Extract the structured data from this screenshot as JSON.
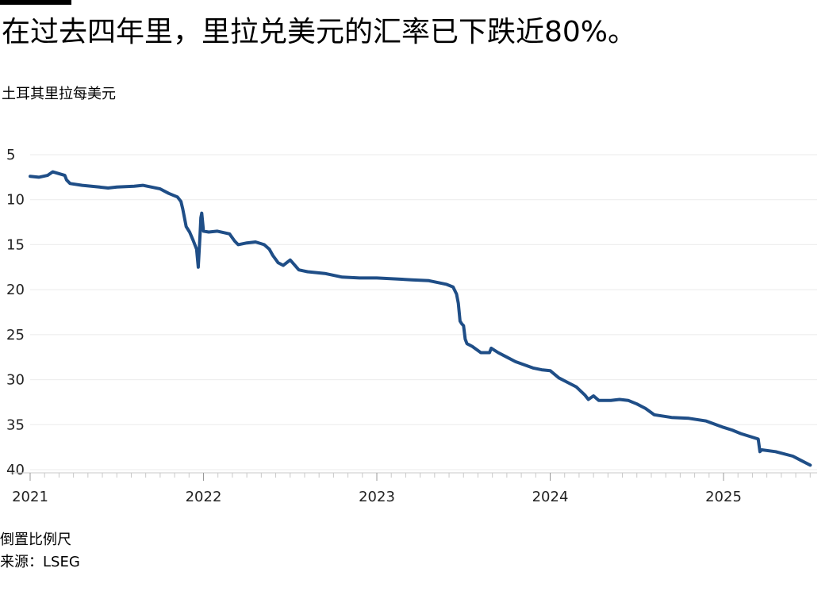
{
  "title": "在过去四年里，里拉兑美元的汇率已下跌近80%。",
  "unit_label": "土耳其里拉每美元",
  "note": "倒置比例尺",
  "source": "来源：LSEG",
  "colors": {
    "line": "#1f4e87",
    "grid": "#ebebeb",
    "axis": "#c8c8c8"
  },
  "chart_data": {
    "type": "line",
    "title": "在过去四年里，里拉兑美元的汇率已下跌近80%。",
    "xlabel": "",
    "ylabel": "土耳其里拉每美元",
    "y_inverted": true,
    "ylim": [
      5,
      40
    ],
    "yticks": [
      5,
      10,
      15,
      20,
      25,
      30,
      35,
      40
    ],
    "xticks": [
      2021,
      2022,
      2023,
      2024,
      2025
    ],
    "xlim": [
      2021.0,
      2025.54
    ],
    "grid": "horizontal",
    "legend": "none",
    "series": [
      {
        "x": [
          2021.0,
          2021.05,
          2021.1,
          2021.13,
          2021.2,
          2021.21,
          2021.23,
          2021.3,
          2021.4,
          2021.45,
          2021.5,
          2021.6,
          2021.65,
          2021.7,
          2021.75,
          2021.8,
          2021.85,
          2021.87,
          2021.88,
          2021.89,
          2021.9,
          2021.92,
          2021.94,
          2021.96,
          2021.97,
          2021.98,
          2021.985,
          2021.99,
          2021.995,
          2022.0,
          2022.03,
          2022.08,
          2022.15,
          2022.18,
          2022.2,
          2022.25,
          2022.3,
          2022.35,
          2022.38,
          2022.4,
          2022.43,
          2022.46,
          2022.5,
          2022.55,
          2022.6,
          2022.7,
          2022.8,
          2022.9,
          2023.0,
          2023.1,
          2023.2,
          2023.3,
          2023.35,
          2023.4,
          2023.44,
          2023.46,
          2023.47,
          2023.48,
          2023.49,
          2023.5,
          2023.51,
          2023.52,
          2023.55,
          2023.6,
          2023.65,
          2023.66,
          2023.7,
          2023.75,
          2023.8,
          2023.9,
          2023.95,
          2024.0,
          2024.05,
          2024.1,
          2024.15,
          2024.2,
          2024.22,
          2024.25,
          2024.28,
          2024.35,
          2024.4,
          2024.45,
          2024.5,
          2024.55,
          2024.6,
          2024.7,
          2024.8,
          2024.9,
          2025.0,
          2025.05,
          2025.1,
          2025.15,
          2025.2,
          2025.21,
          2025.22,
          2025.3,
          2025.4,
          2025.45,
          2025.5
        ],
        "y": [
          7.4,
          7.5,
          7.3,
          6.9,
          7.3,
          7.8,
          8.2,
          8.4,
          8.6,
          8.7,
          8.6,
          8.5,
          8.4,
          8.6,
          8.8,
          9.3,
          9.7,
          10.2,
          11.0,
          12.0,
          13.0,
          13.6,
          14.5,
          15.5,
          17.5,
          14.0,
          12.0,
          11.5,
          12.5,
          13.5,
          13.6,
          13.5,
          13.8,
          14.6,
          15.0,
          14.8,
          14.7,
          15.0,
          15.5,
          16.2,
          17.0,
          17.3,
          16.7,
          17.8,
          18.0,
          18.2,
          18.6,
          18.7,
          18.7,
          18.8,
          18.9,
          19.0,
          19.2,
          19.4,
          19.7,
          20.5,
          21.5,
          23.5,
          23.8,
          24.0,
          25.5,
          26.0,
          26.3,
          27.0,
          27.0,
          26.5,
          27.0,
          27.5,
          28.0,
          28.7,
          28.9,
          29.0,
          29.8,
          30.3,
          30.8,
          31.7,
          32.2,
          31.8,
          32.3,
          32.3,
          32.2,
          32.3,
          32.7,
          33.2,
          33.9,
          34.2,
          34.3,
          34.6,
          35.3,
          35.6,
          36.0,
          36.3,
          36.6,
          38.0,
          37.8,
          38.0,
          38.5,
          39.0,
          39.5
        ]
      }
    ]
  }
}
